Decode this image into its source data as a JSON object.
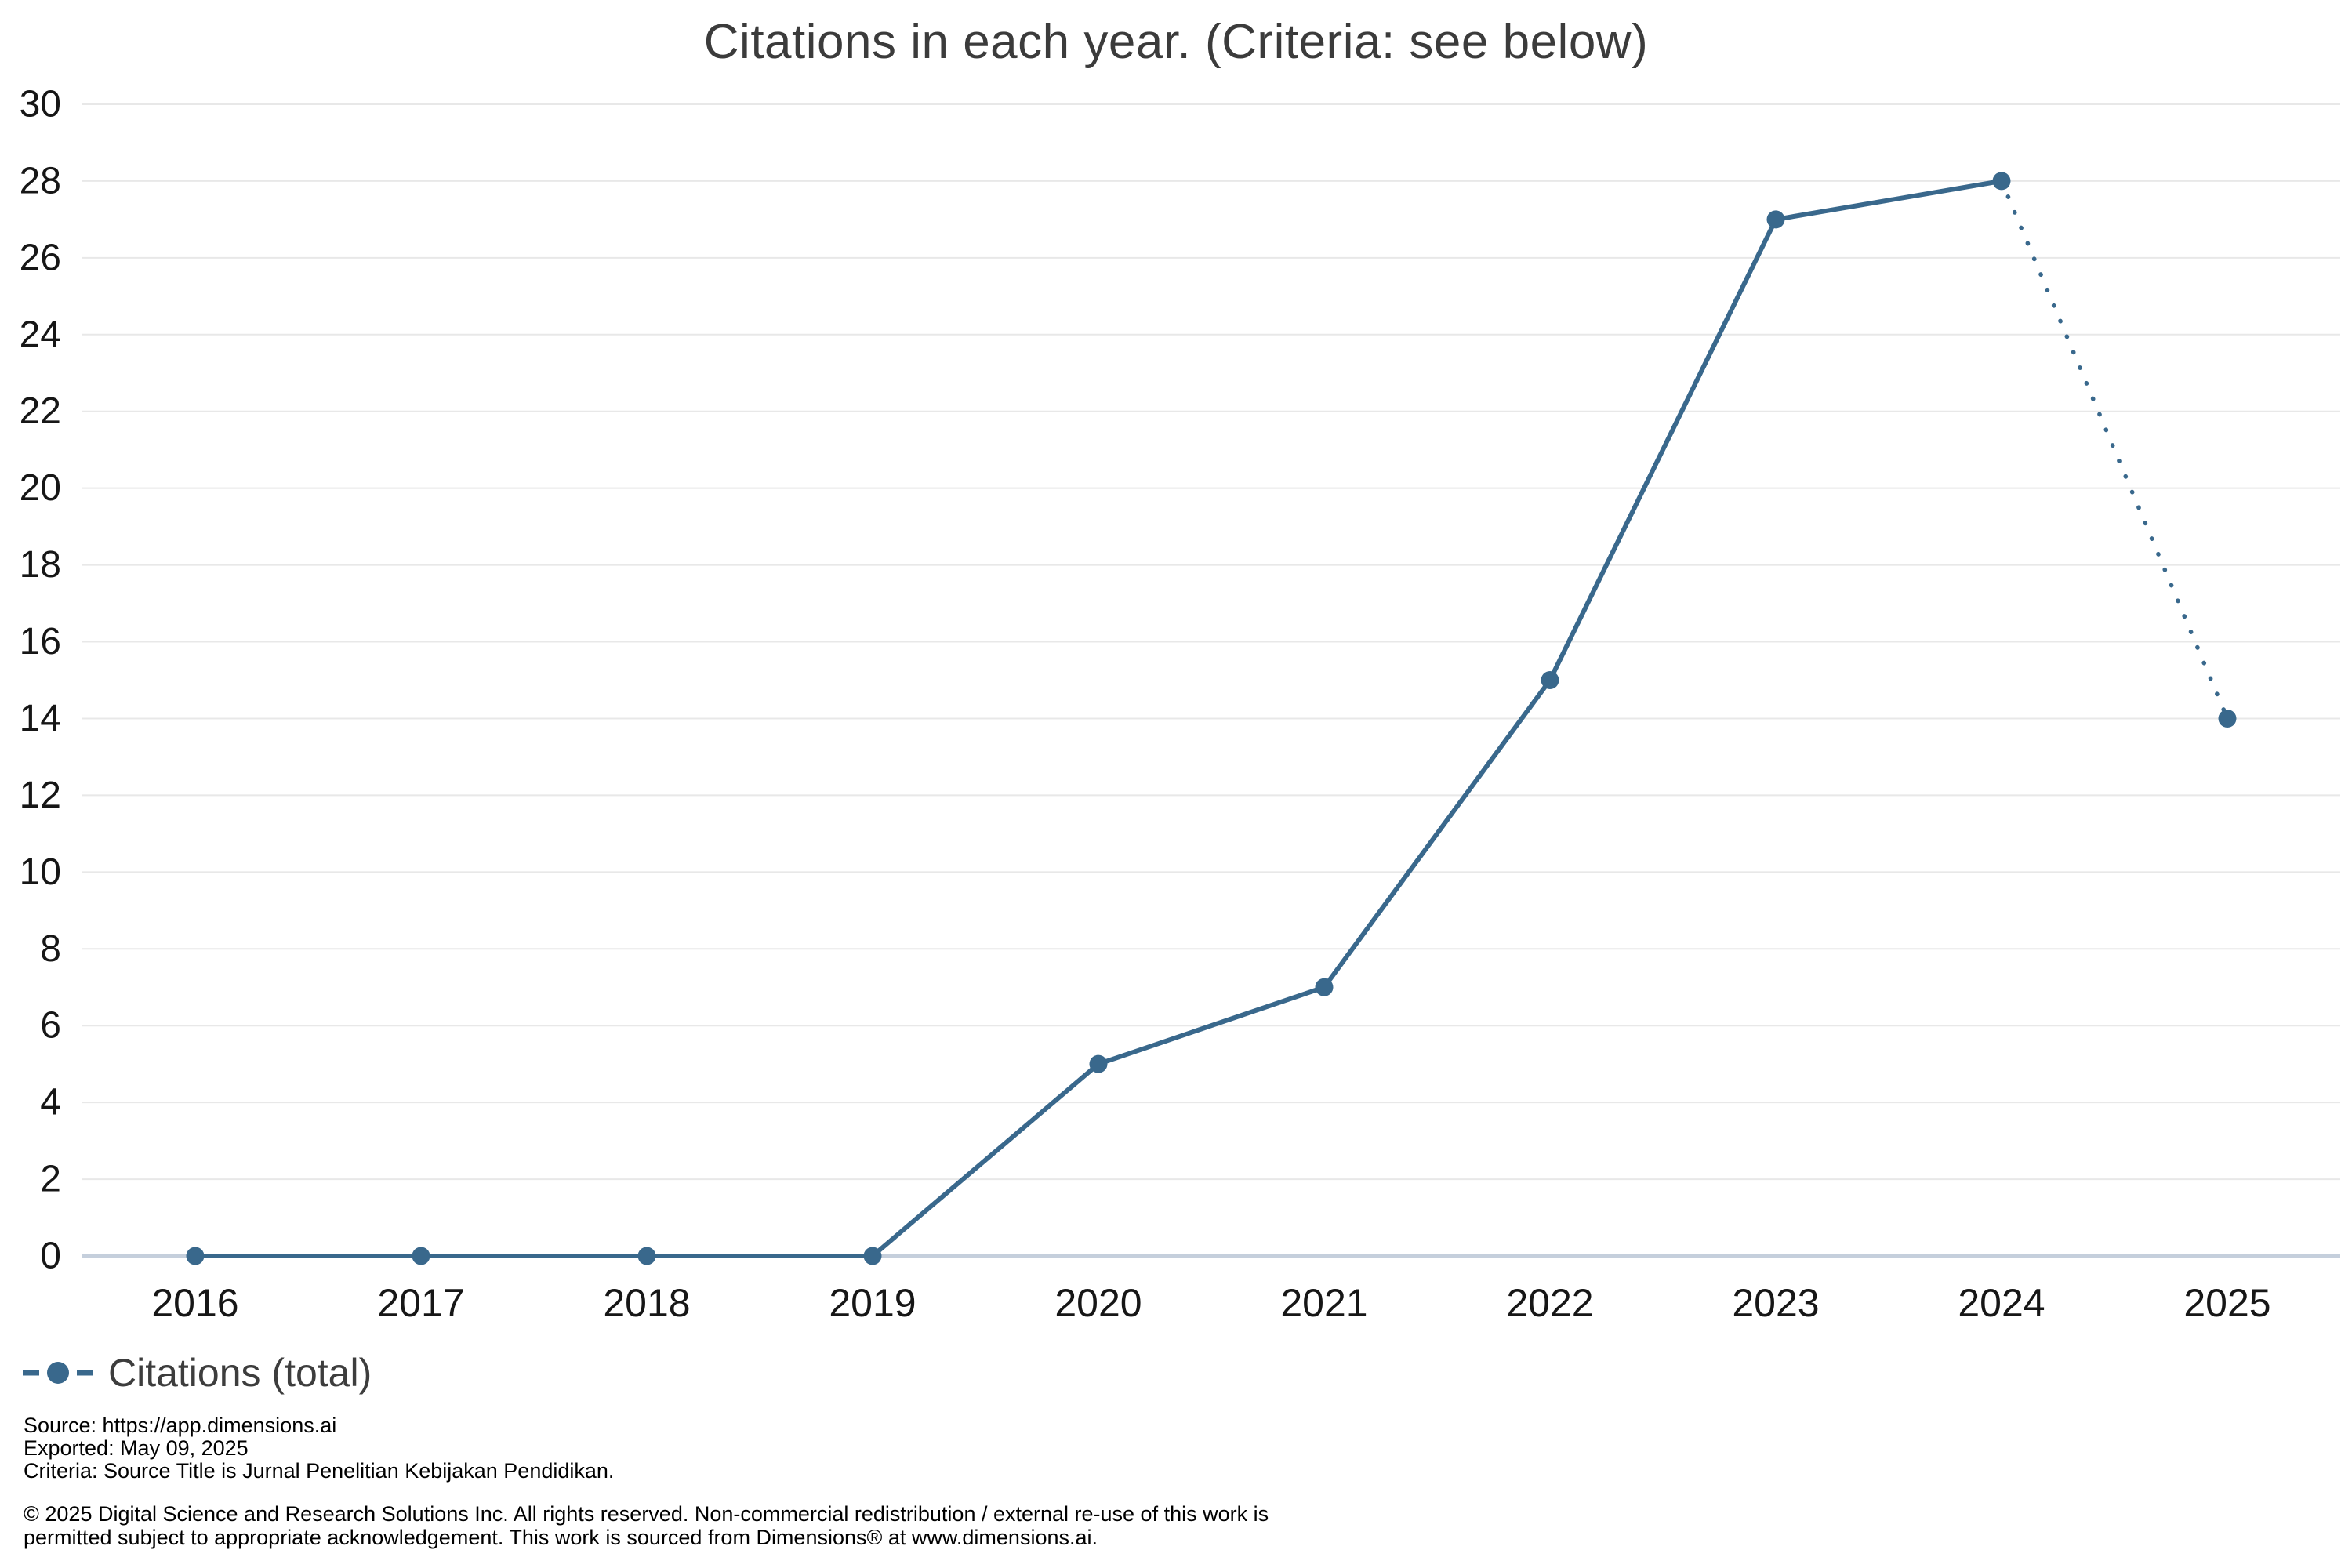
{
  "title": "Citations in each year. (Criteria: see below)",
  "legend": {
    "label": "Citations (total)"
  },
  "footer": {
    "source": "Source: https://app.dimensions.ai",
    "exported": "Exported: May 09, 2025",
    "criteria": "Criteria: Source Title is Jurnal Penelitian Kebijakan Pendidikan.",
    "copyright_line1": "© 2025 Digital Science and Research Solutions Inc. All rights reserved. Non-commercial redistribution / external re-use of this work is",
    "copyright_line2": "permitted subject to appropriate acknowledgement. This work is sourced from Dimensions® at www.dimensions.ai."
  },
  "chart_data": {
    "type": "line",
    "title": "Citations in each year. (Criteria: see below)",
    "categories": [
      "2016",
      "2017",
      "2018",
      "2019",
      "2020",
      "2021",
      "2022",
      "2023",
      "2024",
      "2025"
    ],
    "series": [
      {
        "name": "Citations (total)",
        "values": [
          0,
          0,
          0,
          0,
          5,
          7,
          15,
          27,
          28,
          14
        ]
      }
    ],
    "dotted_segment": {
      "from": "2024",
      "to": "2025",
      "style": "dotted"
    },
    "xlabel": "",
    "ylabel": "",
    "ylim": [
      0,
      30
    ],
    "ytick_step": 2,
    "grid": "horizontal",
    "legend_position": "bottom-left",
    "colors": {
      "line": "#39688c",
      "grid": "#e8e8e8",
      "axis_line": "#c5cfdc",
      "title_text": "#3b3b3b",
      "tick_text": "#161616",
      "legend_text": "#3d3d3d",
      "footer_text": "#000000"
    }
  }
}
